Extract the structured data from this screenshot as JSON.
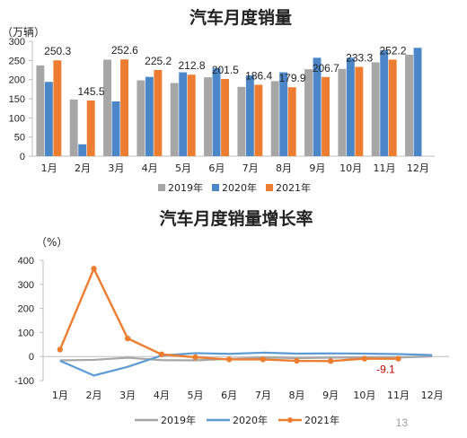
{
  "page_number": "13",
  "chart_data": [
    {
      "type": "bar",
      "title": "汽车月度销量",
      "ylabel": "（万辆）",
      "ylim": [
        0,
        300
      ],
      "yticks": [
        0,
        50,
        100,
        150,
        200,
        250,
        300
      ],
      "categories": [
        "1月",
        "2月",
        "3月",
        "4月",
        "5月",
        "6月",
        "7月",
        "8月",
        "9月",
        "10月",
        "11月",
        "12月"
      ],
      "series": [
        {
          "name": "2019年",
          "color": "#a6a6a6",
          "values": [
            237,
            148,
            252,
            198,
            191,
            206,
            181,
            196,
            227,
            228,
            245,
            265
          ]
        },
        {
          "name": "2020年",
          "color": "#4a86c8",
          "values": [
            194,
            31,
            143,
            207,
            219,
            230,
            211,
            219,
            257,
            257,
            277,
            283
          ]
        },
        {
          "name": "2021年",
          "color": "#ed7d31",
          "values": [
            250.3,
            145.5,
            252.6,
            225.2,
            212.8,
            201.5,
            186.4,
            179.9,
            206.7,
            233.3,
            252.2,
            null
          ]
        }
      ],
      "data_labels": [
        "250.3",
        "145.5",
        "252.6",
        "225.2",
        "212.8",
        "201.5",
        "186.4",
        "179.9",
        "206.7",
        "233.3",
        "252.2",
        ""
      ],
      "legend": "bottom",
      "grid": false
    },
    {
      "type": "line",
      "title": "汽车月度销量增长率",
      "ylabel": "（%）",
      "ylim": [
        -100,
        400
      ],
      "yticks": [
        -100,
        0,
        100,
        200,
        300,
        400
      ],
      "categories": [
        "1月",
        "2月",
        "3月",
        "4月",
        "5月",
        "6月",
        "7月",
        "8月",
        "9月",
        "10月",
        "11月",
        "12月"
      ],
      "series": [
        {
          "name": "2019年",
          "color": "#a6a6a6",
          "values": [
            -16,
            -14,
            -5,
            -15,
            -16,
            -10,
            -4,
            -7,
            -5,
            -4,
            -4,
            0
          ]
        },
        {
          "name": "2020年",
          "color": "#5b9bd5",
          "values": [
            -18,
            -79,
            -43,
            4,
            14,
            11,
            16,
            12,
            13,
            12,
            10,
            6
          ]
        },
        {
          "name": "2021年",
          "color": "#ed7d31",
          "values": [
            29,
            365,
            75,
            9,
            -3,
            -12,
            -12,
            -18,
            -19,
            -9,
            -9.1,
            null
          ]
        }
      ],
      "end_label": "-9.1",
      "end_label_color": "#c00000",
      "legend": "bottom",
      "grid": false
    }
  ]
}
